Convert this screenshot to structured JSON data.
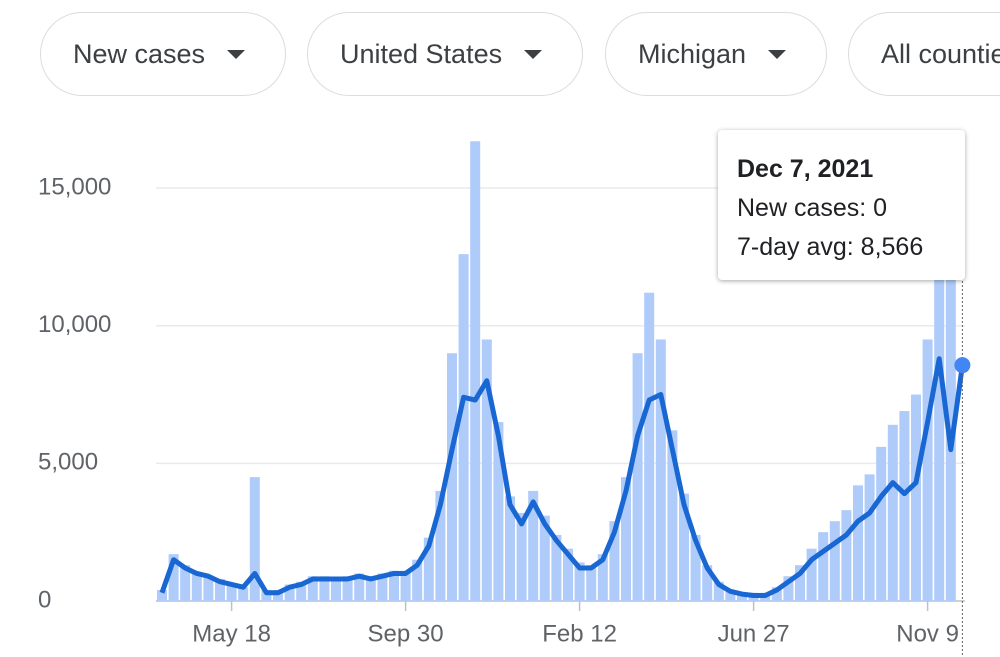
{
  "filters": [
    "New cases",
    "United States",
    "Michigan",
    "All counties"
  ],
  "chart_data": {
    "type": "bar-line",
    "categories": [
      null,
      null,
      null,
      null,
      null,
      null,
      "May 18",
      null,
      null,
      null,
      null,
      null,
      null,
      null,
      null,
      null,
      null,
      null,
      null,
      null,
      null,
      "Sep 30",
      null,
      null,
      null,
      null,
      null,
      null,
      null,
      null,
      null,
      null,
      null,
      null,
      null,
      null,
      "Feb 12",
      null,
      null,
      null,
      null,
      null,
      null,
      null,
      null,
      null,
      null,
      null,
      null,
      null,
      null,
      "Jun 27",
      null,
      null,
      null,
      null,
      null,
      null,
      null,
      null,
      null,
      null,
      null,
      null,
      null,
      null,
      "Nov 9",
      null,
      null,
      null
    ],
    "series": [
      {
        "name": "New cases",
        "color": "#aecbfa",
        "values": [
          400,
          1700,
          1300,
          1000,
          900,
          800,
          600,
          500,
          4500,
          400,
          400,
          600,
          700,
          900,
          900,
          800,
          900,
          1000,
          900,
          1000,
          1100,
          1100,
          1500,
          2300,
          4000,
          9000,
          12600,
          16700,
          9500,
          6500,
          3800,
          3200,
          4000,
          3100,
          2400,
          1900,
          1400,
          1300,
          1700,
          2900,
          4500,
          9000,
          11200,
          9500,
          6200,
          3900,
          2400,
          1300,
          700,
          400,
          300,
          300,
          300,
          500,
          900,
          1300,
          1900,
          2500,
          2900,
          3300,
          4200,
          4600,
          5600,
          6400,
          6900,
          7500,
          9500,
          12000,
          12500,
          0
        ]
      },
      {
        "name": "7-day avg",
        "color": "#1967d2",
        "values": [
          300,
          1500,
          1200,
          1000,
          900,
          700,
          600,
          500,
          1000,
          300,
          300,
          500,
          600,
          800,
          800,
          800,
          800,
          900,
          800,
          900,
          1000,
          1000,
          1300,
          2000,
          3500,
          5500,
          7400,
          7300,
          8000,
          6000,
          3500,
          2800,
          3600,
          2800,
          2200,
          1700,
          1200,
          1200,
          1500,
          2500,
          4000,
          6000,
          7300,
          7500,
          5500,
          3500,
          2200,
          1200,
          600,
          350,
          250,
          200,
          200,
          400,
          700,
          1000,
          1500,
          1800,
          2100,
          2400,
          2900,
          3200,
          3800,
          4300,
          3900,
          4300,
          6500,
          8800,
          5500,
          8566
        ]
      }
    ],
    "ylim": [
      0,
      17000
    ],
    "yticks": [
      0,
      {
        "value": 5000,
        "label": "5,000"
      },
      {
        "value": 10000,
        "label": "10,000"
      },
      {
        "value": 15000,
        "label": "15,000"
      }
    ],
    "grid": true,
    "tooltip": {
      "date": "Dec 7, 2021",
      "lines": [
        "New cases: 0",
        "7-day avg: 8,566"
      ]
    }
  }
}
